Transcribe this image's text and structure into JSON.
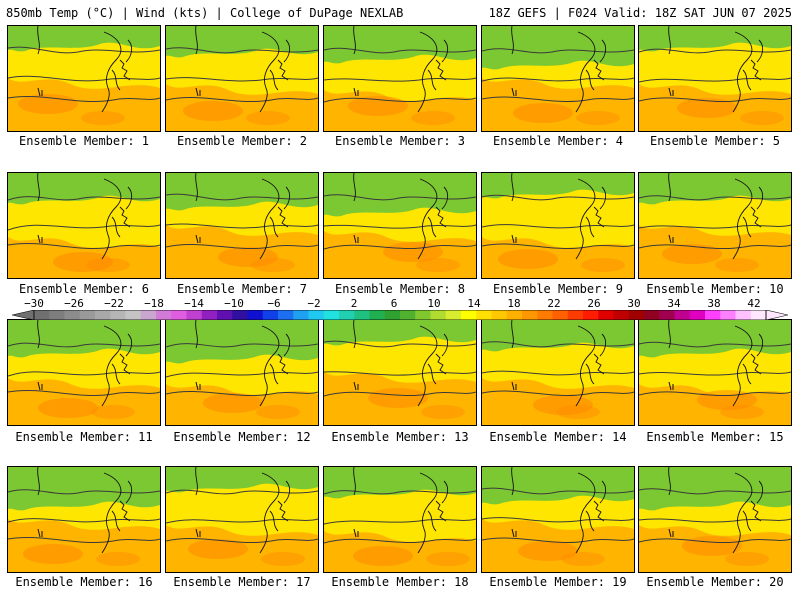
{
  "header": {
    "left": "850mb Temp (°C) | Wind (kts) | College of DuPage NEXLAB",
    "right": "18Z GEFS | F024 Valid: 18Z SAT JUN 07 2025"
  },
  "members": [
    {
      "label": "Ensemble Member: 1"
    },
    {
      "label": "Ensemble Member: 2"
    },
    {
      "label": "Ensemble Member: 3"
    },
    {
      "label": "Ensemble Member: 4"
    },
    {
      "label": "Ensemble Member: 5"
    },
    {
      "label": "Ensemble Member: 6"
    },
    {
      "label": "Ensemble Member: 7"
    },
    {
      "label": "Ensemble Member: 8"
    },
    {
      "label": "Ensemble Member: 9"
    },
    {
      "label": "Ensemble Member: 10"
    },
    {
      "label": "Ensemble Member: 11"
    },
    {
      "label": "Ensemble Member: 12"
    },
    {
      "label": "Ensemble Member: 13"
    },
    {
      "label": "Ensemble Member: 14"
    },
    {
      "label": "Ensemble Member: 15"
    },
    {
      "label": "Ensemble Member: 16"
    },
    {
      "label": "Ensemble Member: 17"
    },
    {
      "label": "Ensemble Member: 18"
    },
    {
      "label": "Ensemble Member: 19"
    },
    {
      "label": "Ensemble Member: 20"
    }
  ],
  "colorbar": {
    "labels": [
      "−30",
      "−26",
      "−22",
      "−18",
      "−14",
      "−10",
      "−6",
      "−2",
      "2",
      "6",
      "10",
      "14",
      "18",
      "22",
      "26",
      "30",
      "34",
      "38",
      "42"
    ],
    "colors": [
      "#707070",
      "#7e7e7e",
      "#8c8c8c",
      "#9a9a9a",
      "#a8a8a8",
      "#b6b6b6",
      "#c4c4c4",
      "#c9a6cf",
      "#d27ad8",
      "#e05ce0",
      "#c040d0",
      "#9020c0",
      "#6010b0",
      "#3010a0",
      "#1010d0",
      "#1040e8",
      "#1c70f0",
      "#20a0f0",
      "#20c8f0",
      "#20e0e0",
      "#20d0b0",
      "#20c080",
      "#20b050",
      "#30a030",
      "#50b030",
      "#80c830",
      "#b0dc30",
      "#d8ec30",
      "#ffff00",
      "#ffe000",
      "#ffc800",
      "#ffb000",
      "#ff9800",
      "#ff7c00",
      "#ff6000",
      "#ff3c00",
      "#ff1c00",
      "#e00000",
      "#c00000",
      "#a00000",
      "#900020",
      "#a00050",
      "#c00090",
      "#e000c0",
      "#ff40ff",
      "#ff80ff",
      "#ffc0ff",
      "#ffe8ff"
    ]
  },
  "colors": {
    "green_top": "#7cc832",
    "yellow_mid": "#ffe600",
    "orange_low": "#ffb400",
    "dark_orange": "#ff8a00",
    "contour": "#3a3a3a"
  }
}
